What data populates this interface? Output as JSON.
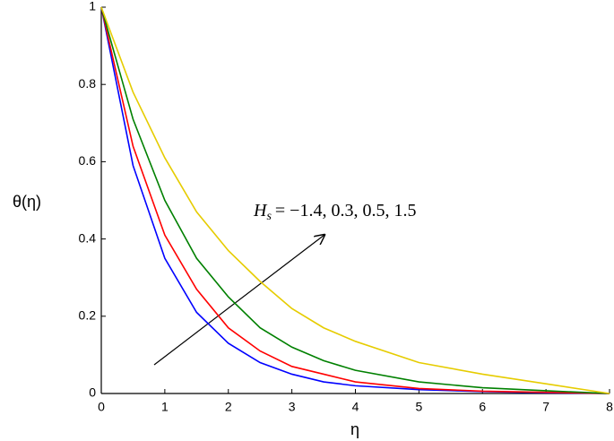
{
  "chart_data": {
    "type": "line",
    "x_label": "η",
    "y_label": "θ(η)",
    "annotation": {
      "symbol": "H",
      "subscript": "s",
      "text": "= −1.4, 0.3, 0.5, 1.5"
    },
    "x": [
      0,
      0.5,
      1,
      1.5,
      2,
      2.5,
      3,
      3.5,
      4,
      5,
      6,
      7,
      8
    ],
    "series": [
      {
        "color": "#0000ff",
        "values": [
          1,
          0.59,
          0.35,
          0.21,
          0.13,
          0.08,
          0.05,
          0.03,
          0.02,
          0.01,
          0.005,
          0.002,
          0
        ]
      },
      {
        "color": "#ff0000",
        "values": [
          1,
          0.64,
          0.41,
          0.27,
          0.17,
          0.11,
          0.07,
          0.05,
          0.03,
          0.013,
          0.006,
          0.003,
          0
        ]
      },
      {
        "color": "#008000",
        "values": [
          1,
          0.71,
          0.5,
          0.35,
          0.25,
          0.17,
          0.12,
          0.085,
          0.06,
          0.03,
          0.015,
          0.007,
          0
        ]
      },
      {
        "color": "#e6cc00",
        "values": [
          1,
          0.78,
          0.61,
          0.47,
          0.37,
          0.29,
          0.22,
          0.17,
          0.135,
          0.08,
          0.05,
          0.025,
          0
        ]
      }
    ],
    "xlim": [
      0,
      8
    ],
    "ylim": [
      0,
      1
    ],
    "xticks": [
      0,
      1,
      2,
      3,
      4,
      5,
      6,
      7,
      8
    ],
    "yticks": [
      0,
      0.2,
      0.4,
      0.6,
      0.8,
      1
    ]
  }
}
